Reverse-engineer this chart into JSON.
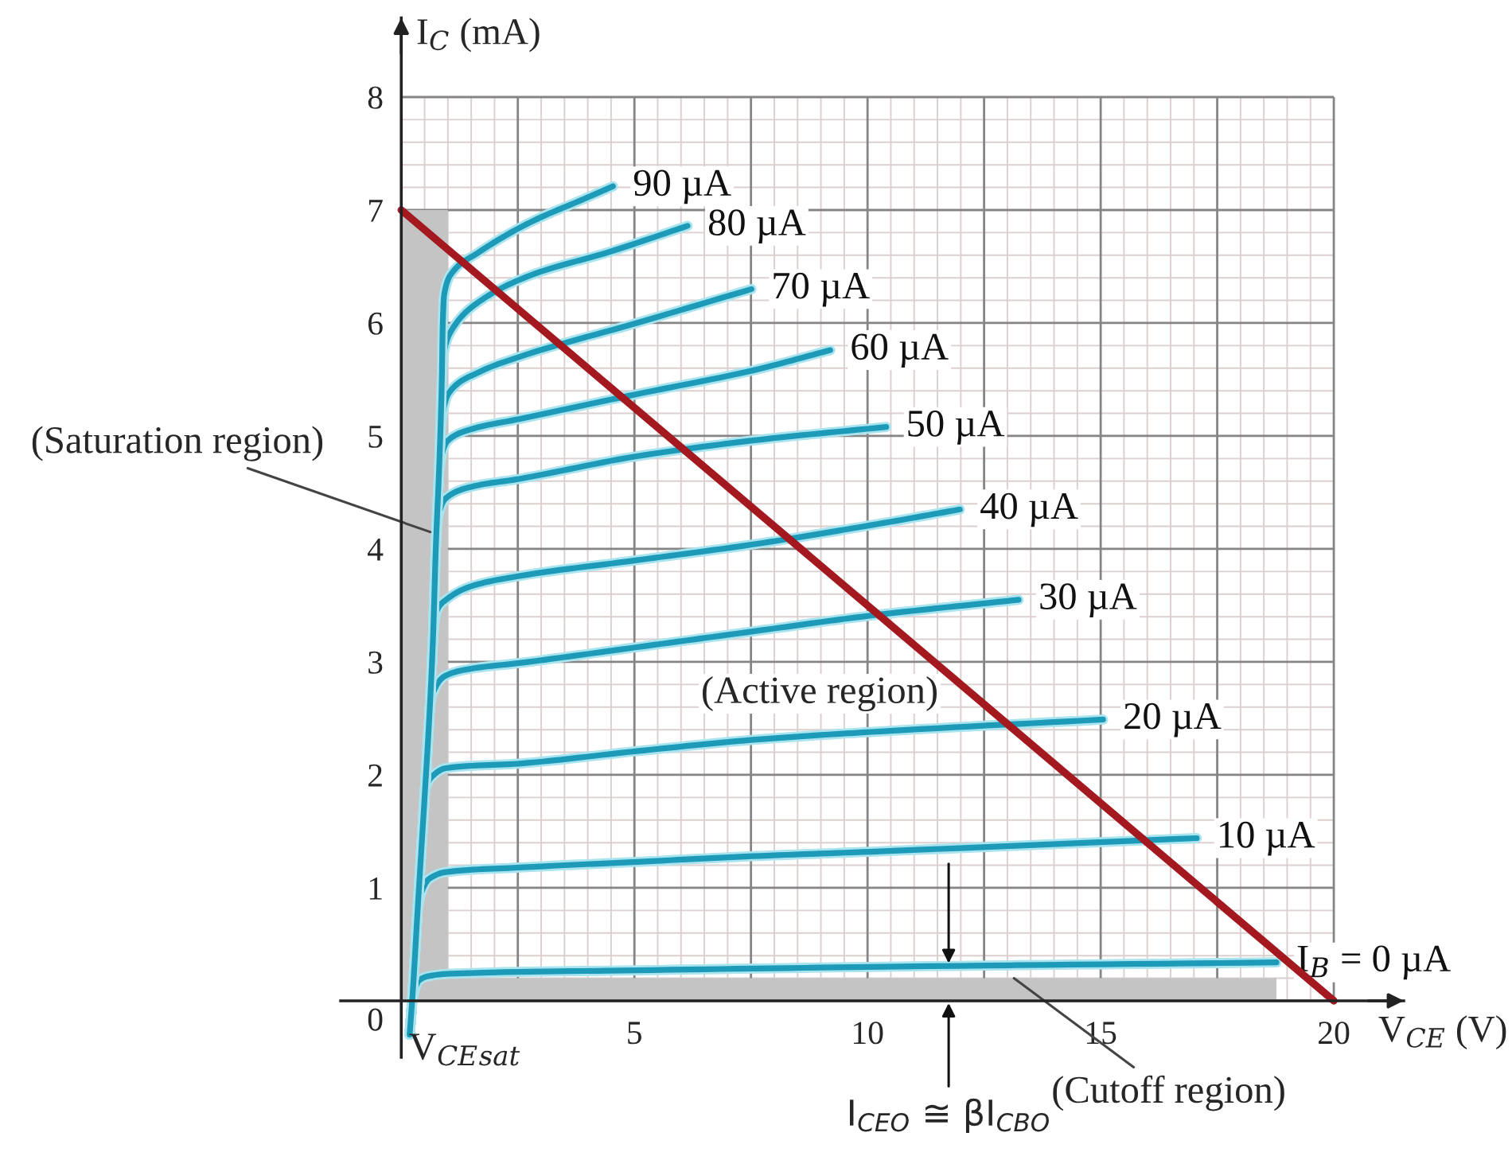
{
  "chart_data": {
    "type": "line",
    "xlabel": "V$_{CE}$ (V)",
    "ylabel": "I$_{C}$ (mA)",
    "xlim": [
      -1.3,
      21.5
    ],
    "ylim": [
      -0.5,
      8.7
    ],
    "xticks": [
      {
        "value": 2.5,
        "label": null
      },
      5,
      {
        "value": 7.5,
        "label": null
      },
      10,
      {
        "value": 12.5,
        "label": null
      },
      15,
      {
        "value": 17.5,
        "label": null
      },
      20
    ],
    "yticks": [
      0,
      1,
      2,
      3,
      4,
      5,
      6,
      7,
      8
    ],
    "grid": true,
    "series": [
      {
        "type": "area",
        "color": "#c4c4c4",
        "x": [
          0,
          1,
          1,
          18.77
        ],
        "values": [
          7,
          7,
          0.2,
          0.2
        ]
      },
      {
        "name": "I$_{B}$ = 0 µA",
        "color": "#1d9ab7",
        "x": [
          0.18,
          0.25,
          0.38,
          0.6,
          1.06,
          5.05,
          10.07,
          18.77
        ],
        "values": [
          -0.3,
          0.02,
          0.18,
          0.22,
          0.24,
          0.27,
          0.3,
          0.34
        ]
      },
      {
        "name": "10 µA",
        "color": "#1d9ab7",
        "x": [
          0.18,
          0.25,
          0.35,
          0.45,
          0.6,
          0.96,
          2.53,
          5.05,
          7.54,
          10.07,
          17.06
        ],
        "values": [
          -0.3,
          0.1,
          0.8,
          0.98,
          1.08,
          1.14,
          1.18,
          1.23,
          1.28,
          1.32,
          1.44
        ]
      },
      {
        "name": "20 µA",
        "color": "#1d9ab7",
        "x": [
          0.18,
          0.25,
          0.35,
          0.45,
          0.51,
          0.65,
          0.96,
          2.53,
          5.05,
          7.54,
          10.07,
          15.05
        ],
        "values": [
          -0.3,
          0.1,
          0.8,
          1.5,
          1.86,
          1.98,
          2.06,
          2.1,
          2.21,
          2.31,
          2.38,
          2.49
        ]
      },
      {
        "name": "30 µA",
        "color": "#1d9ab7",
        "x": [
          0.18,
          0.25,
          0.35,
          0.5,
          0.58,
          0.66,
          0.96,
          1.5,
          2.53,
          5.05,
          7.54,
          10.07,
          13.24
        ],
        "values": [
          -0.3,
          0.1,
          0.8,
          1.8,
          2.4,
          2.7,
          2.88,
          2.94,
          2.99,
          3.13,
          3.27,
          3.41,
          3.55
        ]
      },
      {
        "name": "40 µA",
        "color": "#1d9ab7",
        "x": [
          0.18,
          0.25,
          0.35,
          0.5,
          0.6,
          0.68,
          0.76,
          0.96,
          1.5,
          2.53,
          5.05,
          7.54,
          10.07,
          11.98
        ],
        "values": [
          -0.3,
          0.1,
          0.8,
          1.8,
          2.5,
          3.2,
          3.45,
          3.55,
          3.67,
          3.76,
          3.9,
          4.04,
          4.21,
          4.35
        ]
      },
      {
        "name": "50 µA",
        "color": "#1d9ab7",
        "x": [
          0.18,
          0.25,
          0.35,
          0.5,
          0.6,
          0.68,
          0.74,
          0.8,
          0.96,
          1.5,
          2.53,
          5.05,
          7.54,
          10.4
        ],
        "values": [
          -0.3,
          0.1,
          0.8,
          1.8,
          2.5,
          3.2,
          4.0,
          4.3,
          4.45,
          4.55,
          4.62,
          4.82,
          4.96,
          5.08
        ]
      },
      {
        "name": "60 µA",
        "color": "#1d9ab7",
        "x": [
          0.18,
          0.25,
          0.35,
          0.5,
          0.6,
          0.68,
          0.74,
          0.82,
          0.9,
          1.0,
          1.5,
          2.53,
          5.05,
          7.54,
          9.2
        ],
        "values": [
          -0.3,
          0.1,
          0.8,
          1.8,
          2.5,
          3.2,
          4.0,
          4.7,
          4.88,
          4.96,
          5.06,
          5.15,
          5.37,
          5.58,
          5.76
        ]
      },
      {
        "name": "70 µA",
        "color": "#1d9ab7",
        "x": [
          0.18,
          0.25,
          0.35,
          0.5,
          0.6,
          0.68,
          0.74,
          0.82,
          0.87,
          1.02,
          1.64,
          2.53,
          5.05,
          7.51
        ],
        "values": [
          -0.3,
          0.1,
          0.8,
          1.8,
          2.5,
          3.2,
          4.0,
          4.8,
          5.15,
          5.38,
          5.56,
          5.7,
          6.0,
          6.3
        ]
      },
      {
        "name": "80 µA",
        "color": "#1d9ab7",
        "x": [
          0.18,
          0.25,
          0.35,
          0.5,
          0.6,
          0.68,
          0.74,
          0.82,
          0.87,
          0.92,
          1.1,
          1.64,
          2.76,
          4.47,
          6.14
        ],
        "values": [
          -0.3,
          0.1,
          0.8,
          1.8,
          2.5,
          3.2,
          4.0,
          4.8,
          5.5,
          5.75,
          5.95,
          6.18,
          6.42,
          6.63,
          6.86
        ]
      },
      {
        "name": "90 µA",
        "color": "#1d9ab7",
        "x": [
          0.18,
          0.25,
          0.35,
          0.5,
          0.6,
          0.68,
          0.74,
          0.82,
          0.87,
          0.89,
          0.92,
          1.1,
          1.64,
          2.76,
          3.93,
          4.54
        ],
        "values": [
          -0.3,
          0.1,
          0.8,
          1.8,
          2.5,
          3.2,
          4.0,
          4.8,
          5.5,
          6.0,
          6.25,
          6.45,
          6.62,
          6.89,
          7.1,
          7.21
        ]
      },
      {
        "color": "#a3191f",
        "x": [
          0,
          20
        ],
        "values": [
          7,
          0
        ]
      }
    ],
    "annotations": [
      {
        "text": "(Saturation region)",
        "x": 0.62,
        "y": 4.15
      },
      "(Active region)",
      {
        "text": "(Cutoff region)",
        "x": 13.14,
        "y": 0.2
      },
      {
        "text": "I$_{CEO}$ ≅ βI$_{CBO}$",
        "x": 11.74,
        "y": 0
      },
      "V$_{CE}$$_{sat}$"
    ]
  }
}
